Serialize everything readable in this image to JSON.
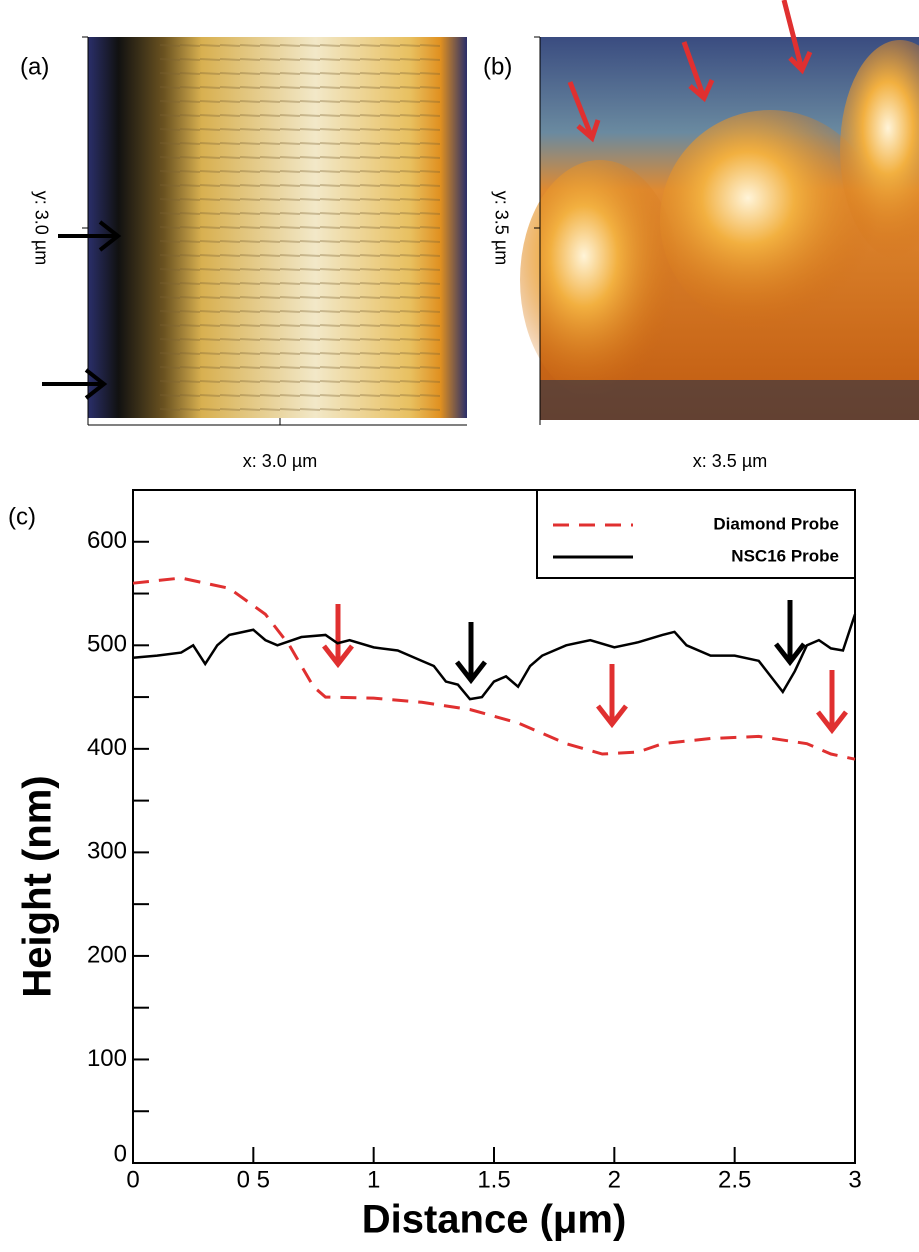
{
  "panels": [
    {
      "label": "(a)",
      "y_label": "y: 3.0 µm",
      "x_label": "x: 3.0 µm"
    },
    {
      "label": "(b)",
      "y_label": "y: 3.5 µm",
      "x_label": "x: 3.5 µm"
    }
  ],
  "chart_data": {
    "type": "line",
    "panel_label": "(c)",
    "x_label": "Distance (μm)",
    "y_label": "Height (nm)",
    "xlim": [
      0,
      3
    ],
    "ylim": [
      0,
      650
    ],
    "xticks": [
      0,
      {
        "value": 0.5,
        "label": "0 5"
      },
      1,
      1.5,
      2,
      2.5,
      3
    ],
    "yticks": [
      0,
      100,
      200,
      300,
      400,
      500,
      600
    ],
    "yminorticks": [
      50,
      150,
      250,
      350,
      450,
      550
    ],
    "legend": "top-right",
    "series": [
      {
        "name": "Diamond Probe",
        "color": "#e03030",
        "dash": true,
        "x": [
          0,
          0.2,
          0.4,
          0.55,
          0.65,
          0.75,
          0.8,
          1.0,
          1.2,
          1.4,
          1.6,
          1.8,
          1.95,
          2.1,
          2.2,
          2.4,
          2.6,
          2.8,
          2.9,
          3.0
        ],
        "values": [
          560,
          565,
          555,
          530,
          500,
          460,
          450,
          449,
          445,
          438,
          425,
          405,
          395,
          397,
          405,
          410,
          412,
          405,
          395,
          390
        ]
      },
      {
        "name": "NSC16 Probe",
        "color": "#000000",
        "dash": false,
        "x": [
          0,
          0.1,
          0.2,
          0.25,
          0.3,
          0.35,
          0.4,
          0.5,
          0.55,
          0.6,
          0.7,
          0.8,
          0.85,
          0.9,
          1.0,
          1.1,
          1.2,
          1.25,
          1.3,
          1.35,
          1.4,
          1.45,
          1.5,
          1.55,
          1.6,
          1.65,
          1.7,
          1.8,
          1.9,
          2.0,
          2.1,
          2.2,
          2.25,
          2.3,
          2.4,
          2.5,
          2.6,
          2.65,
          2.7,
          2.75,
          2.8,
          2.85,
          2.9,
          2.95,
          3.0
        ],
        "values": [
          488,
          490,
          493,
          500,
          482,
          500,
          510,
          515,
          505,
          500,
          508,
          510,
          502,
          505,
          498,
          495,
          485,
          480,
          465,
          462,
          448,
          450,
          465,
          470,
          460,
          480,
          490,
          500,
          505,
          498,
          503,
          510,
          513,
          500,
          490,
          490,
          485,
          470,
          455,
          475,
          500,
          505,
          497,
          495,
          530
        ]
      }
    ]
  }
}
